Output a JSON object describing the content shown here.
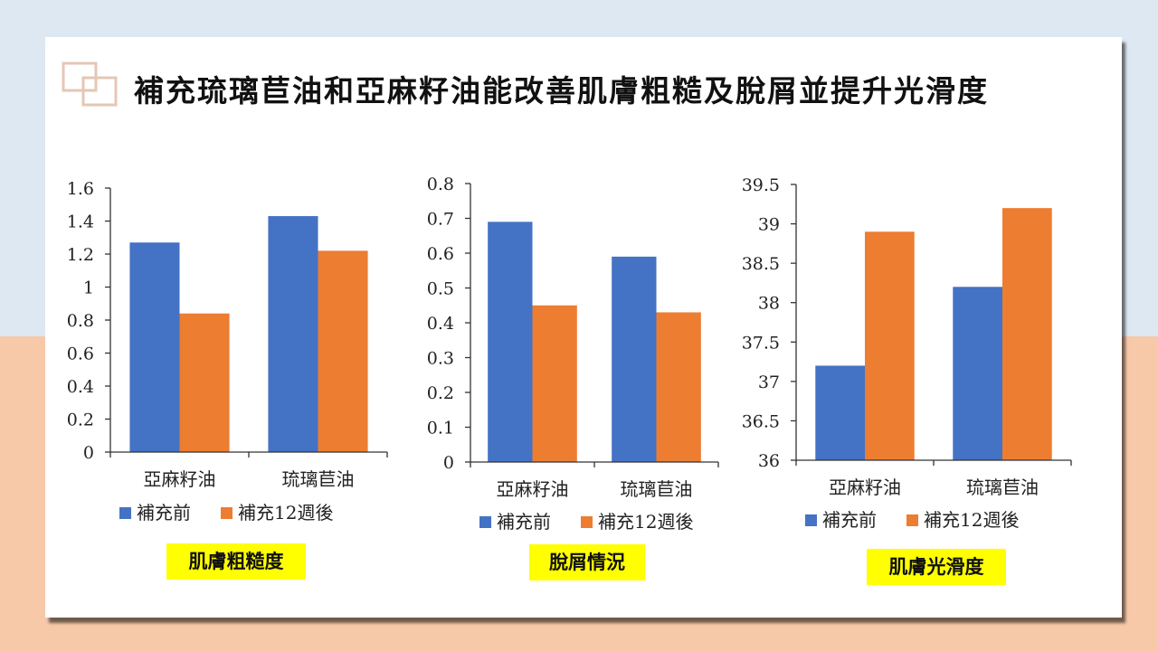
{
  "slide": {
    "title": "補充琉璃苣油和亞麻籽油能改善肌膚粗糙及脫屑並提升光滑度",
    "colors": {
      "background_top": "#dde8f3",
      "background_bottom": "#f7c9a9",
      "logo": "#e5c7b5"
    },
    "icon": "double-square-logo"
  },
  "chart_data": [
    {
      "type": "bar",
      "title": "肌膚粗糙度",
      "categories": [
        "亞麻籽油",
        "琉璃苣油"
      ],
      "series": [
        {
          "name": "補充前",
          "color": "#4472c4",
          "values": [
            1.27,
            1.43
          ]
        },
        {
          "name": "補充12週後",
          "color": "#ed7d31",
          "values": [
            0.84,
            1.22
          ]
        }
      ],
      "ylim": [
        0,
        1.6
      ],
      "yticks": [
        "0",
        "0.2",
        "0.4",
        "0.6",
        "0.8",
        "1",
        "1.2",
        "1.4",
        "1.6"
      ],
      "grid": false,
      "legend": "bottom"
    },
    {
      "type": "bar",
      "title": "脫屑情況",
      "categories": [
        "亞麻籽油",
        "琉璃苣油"
      ],
      "series": [
        {
          "name": "補充前",
          "color": "#4472c4",
          "values": [
            0.69,
            0.59
          ]
        },
        {
          "name": "補充12週後",
          "color": "#ed7d31",
          "values": [
            0.45,
            0.43
          ]
        }
      ],
      "ylim": [
        0,
        0.8
      ],
      "yticks": [
        "0",
        "0.1",
        "0.2",
        "0.3",
        "0.4",
        "0.5",
        "0.6",
        "0.7",
        "0.8"
      ],
      "grid": false,
      "legend": "bottom"
    },
    {
      "type": "bar",
      "title": "肌膚光滑度",
      "categories": [
        "亞麻籽油",
        "琉璃苣油"
      ],
      "series": [
        {
          "name": "補充前",
          "color": "#4472c4",
          "values": [
            37.2,
            38.2
          ]
        },
        {
          "name": "補充12週後",
          "color": "#ed7d31",
          "values": [
            38.9,
            39.2
          ]
        }
      ],
      "ylim": [
        36,
        39.5
      ],
      "yticks": [
        "36",
        "36.5",
        "37",
        "37.5",
        "38",
        "38.5",
        "39",
        "39.5"
      ],
      "grid": false,
      "legend": "bottom"
    }
  ]
}
